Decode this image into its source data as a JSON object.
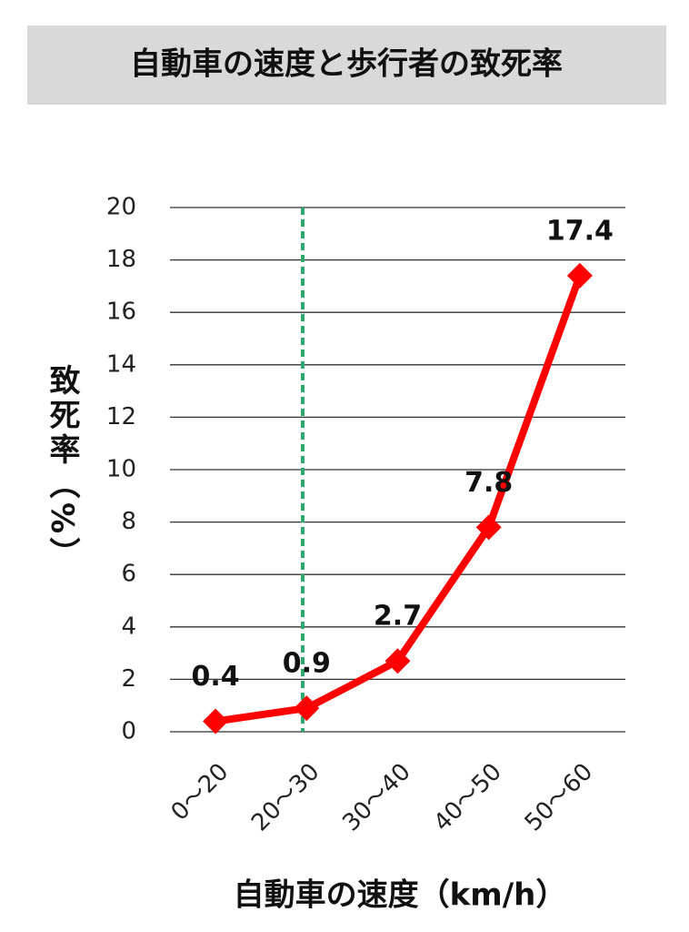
{
  "chart_data": {
    "type": "line",
    "title": "自動車の速度と歩行者の致死率",
    "x_label": "自動車の速度（km/h）",
    "y_label": "致死率（%）",
    "categories": [
      "0〜20",
      "20〜30",
      "30〜40",
      "40〜50",
      "50〜60"
    ],
    "values": [
      0.4,
      0.9,
      2.7,
      7.8,
      17.4
    ],
    "color": "#ff0000",
    "ylim": [
      0,
      20
    ],
    "yticks": [
      0,
      2,
      4,
      6,
      8,
      10,
      12,
      14,
      16,
      18,
      20
    ],
    "grid": true
  }
}
